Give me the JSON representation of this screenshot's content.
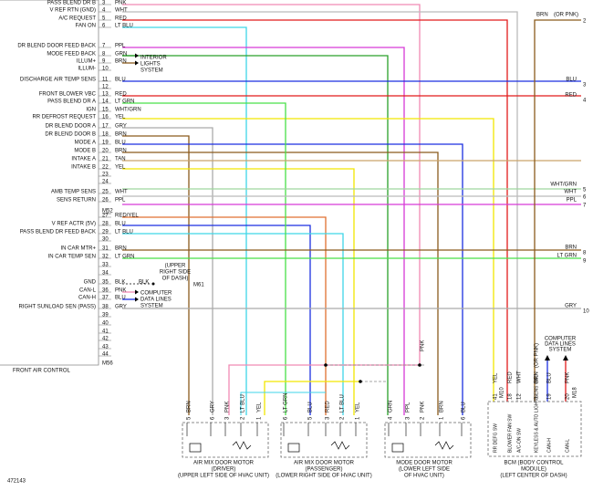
{
  "connector": {
    "title": "FRONT AIR CONTROL",
    "mid_id": "M52",
    "bottom_id": "M56",
    "pins": [
      {
        "number": 3,
        "label": "PASS BLEND DR B",
        "wire": "PNK"
      },
      {
        "number": 4,
        "label": "V REF RTN (GND)",
        "wire": "WHT"
      },
      {
        "number": 5,
        "label": "A/C REQUEST",
        "wire": "RED"
      },
      {
        "number": 6,
        "label": "FAN ON",
        "wire": "LT BLU"
      },
      {
        "number": 7,
        "label": "DR BLEND DOOR FEED BACK",
        "wire": "PPL"
      },
      {
        "number": 8,
        "label": "MODE FEED BACK",
        "wire": "GRN"
      },
      {
        "number": 9,
        "label": "ILLUM+",
        "wire": "BRN"
      },
      {
        "number": 10,
        "label": "ILLUM-"
      },
      {
        "number": 11,
        "label": "DISCHARGE AIR TEMP SENS",
        "wire": "BLU"
      },
      {
        "number": 12
      },
      {
        "number": 13,
        "label": "FRONT BLOWER VBC",
        "wire": "RED"
      },
      {
        "number": 14,
        "label": "PASS BLEND DR A",
        "wire": "LT GRN"
      },
      {
        "number": 15,
        "label": "IGN",
        "wire": "WHT/GRN"
      },
      {
        "number": 16,
        "label": "RR DEFROST REQUEST",
        "wire": "YEL"
      },
      {
        "number": 17,
        "label": "DR BLEND DOOR A",
        "wire": "GRY"
      },
      {
        "number": 18,
        "label": "DR BLEND DOOR B",
        "wire": "BRN"
      },
      {
        "number": 19,
        "label": "MODE A",
        "wire": "BLU"
      },
      {
        "number": 20,
        "label": "MODE B",
        "wire": "BRN"
      },
      {
        "number": 21,
        "label": "INTAKE A",
        "wire": "TAN"
      },
      {
        "number": 22,
        "label": "INTAKE B",
        "wire": "YEL"
      },
      {
        "number": 23
      },
      {
        "number": 24
      },
      {
        "number": 25,
        "label": "AMB TEMP SENS",
        "wire": "WHT"
      },
      {
        "number": 26,
        "label": "SENS RETURN",
        "wire": "PPL"
      },
      {
        "number": 27,
        "wire": "RED/YEL"
      },
      {
        "number": 28,
        "label": "V REF ACTR (5V)",
        "wire": "BLU"
      },
      {
        "number": 29,
        "label": "PASS BLEND DR FEED BACK",
        "wire": "LT BLU"
      },
      {
        "number": 30
      },
      {
        "number": 31,
        "label": "IN CAR MTR+",
        "wire": "BRN"
      },
      {
        "number": 32,
        "label": "IN CAR TEMP SEN",
        "wire": "LT GRN"
      },
      {
        "number": 33
      },
      {
        "number": 34
      },
      {
        "number": 35,
        "label": "GND",
        "wire": "BLK"
      },
      {
        "number": 36,
        "label": "CAN-L",
        "wire": "PNK"
      },
      {
        "number": 37,
        "label": "CAN-H",
        "wire": "BLU"
      },
      {
        "number": 38,
        "label": "RIGHT SUNLOAD SEN (PASS)",
        "wire": "GRY"
      },
      {
        "number": 39
      },
      {
        "number": 40
      },
      {
        "number": 41
      },
      {
        "number": 42
      },
      {
        "number": 43
      },
      {
        "number": 44
      }
    ]
  },
  "annotations": {
    "interior_lights": [
      "INTERIOR",
      "LIGHTS",
      "SYSTEM"
    ],
    "computer_data_left": [
      "COMPUTER",
      "DATA LINES",
      "SYSTEM"
    ],
    "dash_location": [
      "(UPPER",
      "RIGHT SIDE",
      "OF DASH)"
    ],
    "ground_wire": "BLK",
    "ground_id": "M61",
    "computer_data_right": [
      "COMPUTER",
      "DATA LINES",
      "SYSTEM"
    ],
    "pnk_note": "PNK",
    "figure_id": "472143"
  },
  "right_terminals": [
    {
      "number": 2,
      "wire": "BRN",
      "note": "(OR PNK)"
    },
    {
      "number": 3,
      "wire": "BLU"
    },
    {
      "number": 4,
      "wire": "RED"
    },
    {
      "number": 5,
      "wire": "WHT/GRN"
    },
    {
      "number": 6,
      "wire": "WHT"
    },
    {
      "number": 7,
      "wire": "PPL"
    },
    {
      "number": 8,
      "wire": "BRN"
    },
    {
      "number": 9,
      "wire": "LT GRN"
    },
    {
      "number": 10,
      "wire": "GRY"
    }
  ],
  "motors": [
    {
      "name": "AIR MIX DOOR MOTOR",
      "detail": "(DRIVER)",
      "location": "(UPPER LEFT SIDE OF HVAC UNIT)",
      "pins": [
        {
          "number": 5,
          "wire": "BRN"
        },
        {
          "number": 6,
          "wire": "GRY"
        },
        {
          "number": 3,
          "wire": "PNK"
        },
        {
          "number": 2,
          "wire": "LT BLU"
        },
        {
          "number": 1,
          "wire": "YEL"
        }
      ]
    },
    {
      "name": "AIR MIX DOOR MOTOR",
      "detail": "(PASSENGER)",
      "location": "(LOWER RIGHT SIDE OF HVAC UNIT)",
      "pins": [
        {
          "number": 6,
          "wire": "LT GRN"
        },
        {
          "number": 5,
          "wire": "BLU"
        },
        {
          "number": 3,
          "wire": "RED"
        },
        {
          "number": 2,
          "wire": "LT BLU"
        },
        {
          "number": 1,
          "wire": "YEL"
        }
      ]
    },
    {
      "name": "MODE DOOR MOTOR",
      "detail": "(LOWER LEFT SIDE",
      "location": "OF HVAC UNIT)",
      "pins": [
        {
          "number": 4,
          "wire": "GRN"
        },
        {
          "number": 3,
          "wire": "PPL"
        },
        {
          "number": 2,
          "wire": "PNK"
        },
        {
          "number": 1,
          "wire": "BRN"
        },
        {
          "number": 6,
          "wire": "BLU"
        }
      ]
    }
  ],
  "bcm": {
    "name": "BCM (BODY CONTROL",
    "detail": "MODULE)",
    "location": "(LEFT CENTER OF DASH)",
    "connector_a": "M10",
    "connector_b": "M18",
    "pins": [
      {
        "number": 41,
        "wire": "YEL",
        "label": "RR DEFG SW"
      },
      {
        "number": 18,
        "wire": "RED",
        "label": "BLOWER FAN SW"
      },
      {
        "number": 12,
        "wire": "WHT",
        "label": "A/C-ON SW"
      },
      {
        "number": 8,
        "wire": "BRN",
        "note": "(OR PNK)",
        "label": "KEYLESS & AUTO LIGHT SENS GND"
      },
      {
        "number": 19,
        "wire": "BLU",
        "label": "CAN-H"
      },
      {
        "number": 20,
        "wire": "PNK",
        "label": "CAN-L"
      }
    ]
  }
}
